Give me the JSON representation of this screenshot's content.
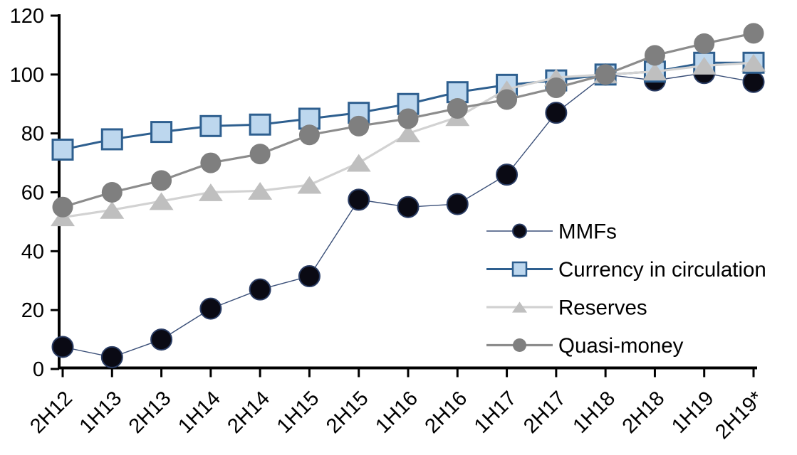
{
  "chart_data": {
    "type": "line",
    "title": "",
    "subtitle": "",
    "xlabel": "",
    "ylabel": "",
    "grid": false,
    "background_color": "#ffffff",
    "axis_color": "#000000",
    "categories": [
      "2H12",
      "1H13",
      "2H13",
      "1H14",
      "2H14",
      "1H15",
      "2H15",
      "1H16",
      "2H16",
      "1H17",
      "2H17",
      "1H18",
      "2H18",
      "1H19",
      "2H19*"
    ],
    "y_axis": {
      "min": 0,
      "max": 120,
      "step": 20,
      "tick_labels": [
        "0",
        "20",
        "40",
        "60",
        "80",
        "100",
        "120"
      ]
    },
    "series": [
      {
        "name": "MMFs",
        "marker": "circle",
        "marker_fill": "#0a0a14",
        "marker_stroke": "#2a3c63",
        "marker_stroke_width": 2,
        "line_color": "#3a4f78",
        "line_width": 1.4,
        "values": [
          7.5,
          4,
          10,
          20.5,
          27,
          31.5,
          57.5,
          55,
          56,
          66,
          87,
          100,
          98,
          100.5,
          97.5
        ]
      },
      {
        "name": "Currency in circulation",
        "marker": "square",
        "marker_fill": "#bdd7ee",
        "marker_stroke": "#2e5f8f",
        "marker_stroke_width": 3,
        "line_color": "#2e5f8f",
        "line_width": 3,
        "values": [
          74.5,
          78,
          80.5,
          82.5,
          83,
          85,
          87,
          90,
          94,
          96.5,
          98,
          100,
          101,
          104,
          104
        ]
      },
      {
        "name": "Reserves",
        "marker": "triangle",
        "marker_fill": "#bfbfbf",
        "marker_stroke": "none",
        "marker_stroke_width": 0,
        "line_color": "#d2d2d2",
        "line_width": 3.2,
        "values": [
          51.5,
          54,
          57,
          60,
          60.5,
          62.5,
          70,
          80,
          85.5,
          95,
          99,
          100,
          101,
          103,
          104
        ]
      },
      {
        "name": "Quasi-money",
        "marker": "circle",
        "marker_fill": "#7f7f7f",
        "marker_stroke": "none",
        "marker_stroke_width": 0,
        "line_color": "#8c8c8c",
        "line_width": 3.2,
        "values": [
          55,
          60,
          64,
          70,
          73,
          79.5,
          82.5,
          85,
          88.5,
          91.5,
          95.5,
          100,
          106.5,
          110.5,
          114
        ]
      }
    ],
    "legend": {
      "position": "inside-right",
      "entries": [
        "MMFs",
        "Currency in circulation",
        "Reserves",
        "Quasi-money"
      ]
    }
  }
}
